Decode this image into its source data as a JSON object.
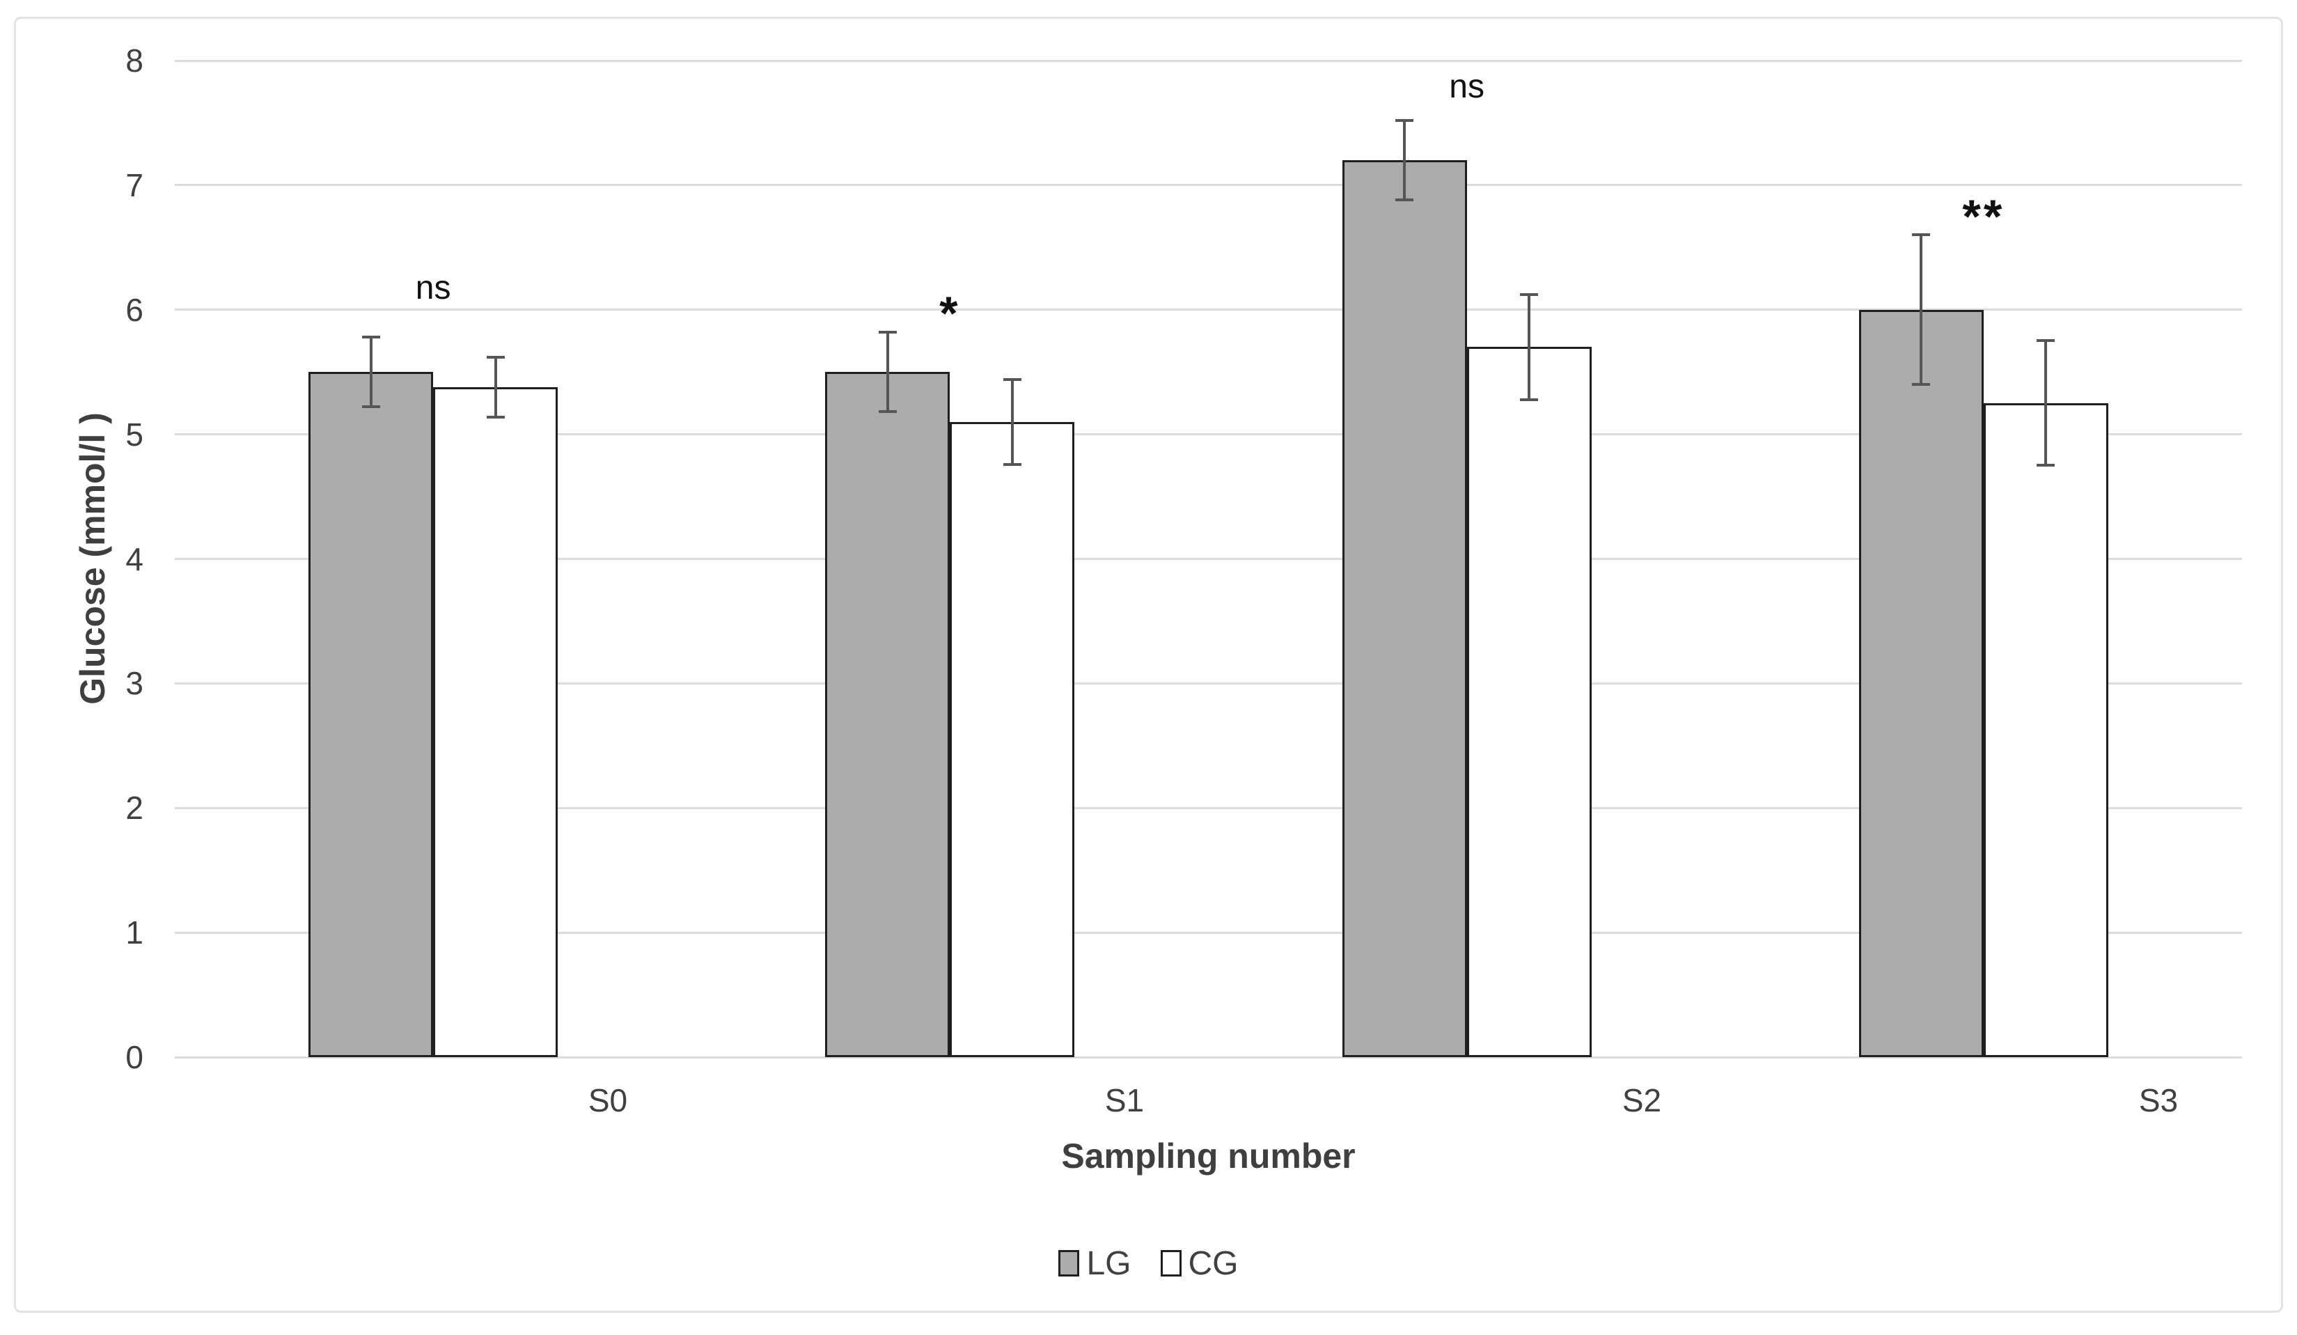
{
  "colors": {
    "background": "#FFFFFF",
    "frame_border": "#E3E3E3",
    "gridline": "#DCDCDC",
    "bar_outline": "#1F1F1F",
    "error_bar": "#555555",
    "axis_text": "#404040",
    "axis_title_text": "#3F3F3F",
    "annotation_text": "#111111",
    "lg_fill": "#ACACAC",
    "cg_fill": "#FFFFFF"
  },
  "chart_data": {
    "type": "bar",
    "title": "",
    "xlabel": "Sampling number",
    "ylabel": "Glucose (mmol/l )",
    "categories": [
      "S0",
      "S1",
      "S2",
      "S3"
    ],
    "series": [
      {
        "name": "LG",
        "fill": "#ACACAC",
        "values": [
          5.5,
          5.5,
          7.2,
          6.0
        ],
        "errors": [
          0.28,
          0.32,
          0.32,
          0.6
        ]
      },
      {
        "name": "CG",
        "fill": "#FFFFFF",
        "values": [
          5.38,
          5.1,
          5.7,
          5.25
        ],
        "errors": [
          0.24,
          0.34,
          0.42,
          0.5
        ]
      }
    ],
    "significance": [
      {
        "category": "S0",
        "label": "ns",
        "y": 6.17
      },
      {
        "category": "S1",
        "label": "*",
        "y": 5.97
      },
      {
        "category": "S2",
        "label": "ns",
        "y": 7.79
      },
      {
        "category": "S3",
        "label": "**",
        "y": 6.75
      }
    ],
    "ylim": [
      0,
      8
    ],
    "yticks": [
      0,
      1,
      2,
      3,
      4,
      5,
      6,
      7,
      8
    ],
    "grid": true,
    "legend_position": "bottom",
    "error_bars": true
  }
}
